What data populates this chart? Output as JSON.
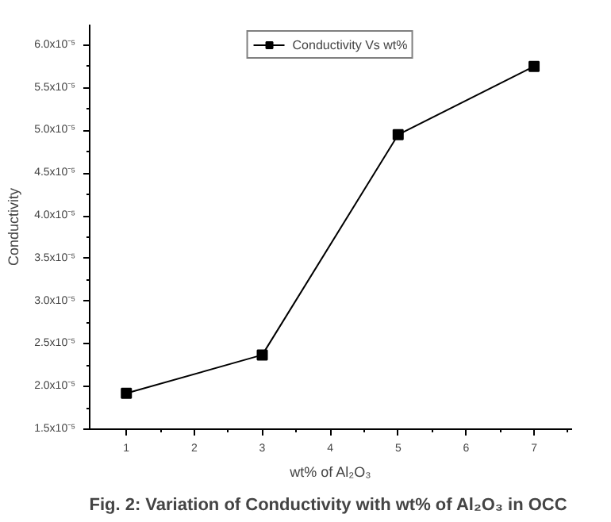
{
  "chart_data": {
    "type": "line",
    "xlabel": "wt% of Al₂O₃",
    "ylabel": "Conductivity",
    "annotations": [
      "Fig.  2: Variation of Conductivity with wt% of Al₂O₃ in OCC"
    ],
    "x": [
      1,
      3,
      5,
      7
    ],
    "series": [
      {
        "name": "Conductivity Vs wt%",
        "color": "#000000",
        "values": [
          1.92e-05,
          2.37e-05,
          4.95e-05,
          5.75e-05
        ]
      }
    ],
    "xlim": [
      0.46,
      7.56
    ],
    "ylim": [
      1.5e-05,
      6.24e-05
    ],
    "xticks": [
      1,
      2,
      3,
      4,
      5,
      6,
      7
    ],
    "yticks": [
      {
        "value": 1.5e-05,
        "label": "1.5x10⁻⁵"
      },
      {
        "value": 2e-05,
        "label": "2.0x10⁻⁵"
      },
      {
        "value": 2.5e-05,
        "label": "2.5x10⁻⁵"
      },
      {
        "value": 3e-05,
        "label": "3.0x10⁻⁵"
      },
      {
        "value": 3.5e-05,
        "label": "3.5x10⁻⁵"
      },
      {
        "value": 4e-05,
        "label": "4.0x10⁻⁵"
      },
      {
        "value": 4.5e-05,
        "label": "4.5x10⁻⁵"
      },
      {
        "value": 5e-05,
        "label": "5.0x10⁻⁵"
      },
      {
        "value": 5.5e-05,
        "label": "5.5x10⁻⁵"
      },
      {
        "value": 6e-05,
        "label": "6.0x10⁻⁵"
      }
    ],
    "marker": "square",
    "line_style": "solid",
    "legend": "top",
    "grid": false
  }
}
